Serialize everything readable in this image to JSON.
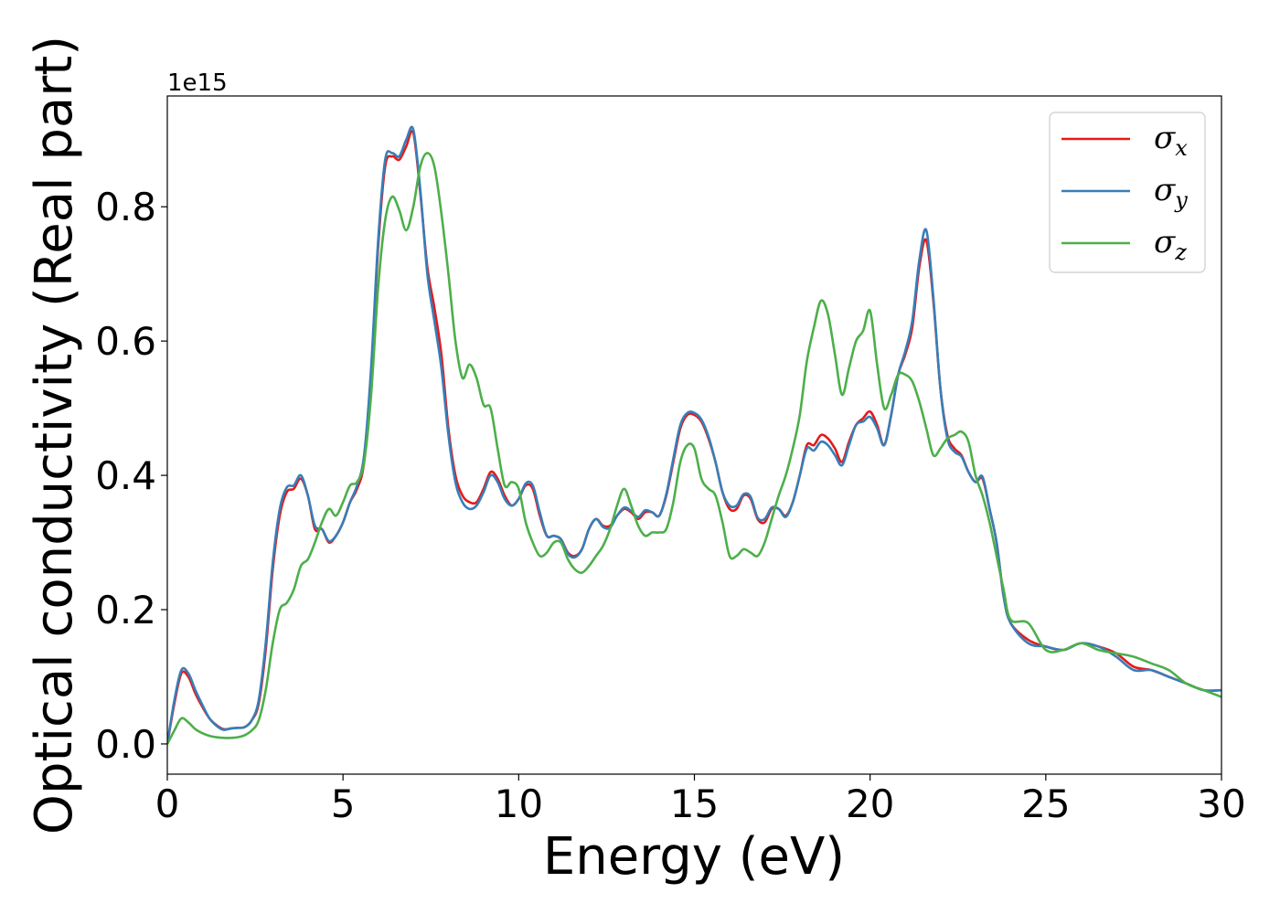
{
  "chart_data": {
    "type": "line",
    "title": "",
    "xlabel": "Energy (eV)",
    "ylabel": "Optical conductivity (Real part)",
    "y_offset_label": "1e15",
    "xlim": [
      0,
      30
    ],
    "ylim": [
      -0.045,
      0.965
    ],
    "xticks": [
      0,
      5,
      10,
      15,
      20,
      25,
      30
    ],
    "xtick_labels": [
      "0",
      "5",
      "10",
      "15",
      "20",
      "25",
      "30"
    ],
    "yticks": [
      0.0,
      0.2,
      0.4,
      0.6,
      0.8
    ],
    "ytick_labels": [
      "0.0",
      "0.2",
      "0.4",
      "0.6",
      "0.8"
    ],
    "grid": false,
    "legend_position": "top-right",
    "series": [
      {
        "name": "σx",
        "legend_symbol": "σ",
        "legend_sub": "x",
        "color": "#e41a1c",
        "x": [
          0,
          0.2,
          0.4,
          0.6,
          0.8,
          1.0,
          1.2,
          1.4,
          1.6,
          1.8,
          2.0,
          2.2,
          2.4,
          2.6,
          2.8,
          3.0,
          3.2,
          3.4,
          3.6,
          3.8,
          4.0,
          4.2,
          4.4,
          4.6,
          4.8,
          5.0,
          5.2,
          5.4,
          5.6,
          5.8,
          6.0,
          6.2,
          6.4,
          6.6,
          6.8,
          7.0,
          7.2,
          7.4,
          7.6,
          7.8,
          8.0,
          8.2,
          8.4,
          8.6,
          8.8,
          9.0,
          9.2,
          9.4,
          9.6,
          9.8,
          10.0,
          10.2,
          10.4,
          10.6,
          10.8,
          11.0,
          11.2,
          11.4,
          11.6,
          11.8,
          12.0,
          12.2,
          12.4,
          12.6,
          12.8,
          13.0,
          13.2,
          13.4,
          13.6,
          13.8,
          14.0,
          14.2,
          14.4,
          14.6,
          14.8,
          15.0,
          15.2,
          15.4,
          15.6,
          15.8,
          16.0,
          16.2,
          16.4,
          16.6,
          16.8,
          17.0,
          17.2,
          17.4,
          17.6,
          17.8,
          18.0,
          18.2,
          18.4,
          18.6,
          18.8,
          19.0,
          19.2,
          19.4,
          19.6,
          19.8,
          20.0,
          20.2,
          20.4,
          20.6,
          20.8,
          21.0,
          21.2,
          21.4,
          21.6,
          21.8,
          22.0,
          22.2,
          22.4,
          22.6,
          22.8,
          23.0,
          23.2,
          23.4,
          23.6,
          23.8,
          24.0,
          24.5,
          25.0,
          25.5,
          26.0,
          26.5,
          27.0,
          27.5,
          28.0,
          28.5,
          29.0,
          29.5,
          30.0
        ],
        "values": [
          0.0,
          0.06,
          0.105,
          0.1,
          0.075,
          0.055,
          0.038,
          0.028,
          0.022,
          0.023,
          0.024,
          0.025,
          0.035,
          0.06,
          0.14,
          0.26,
          0.34,
          0.375,
          0.38,
          0.395,
          0.37,
          0.32,
          0.32,
          0.3,
          0.31,
          0.33,
          0.36,
          0.38,
          0.42,
          0.55,
          0.74,
          0.86,
          0.875,
          0.87,
          0.89,
          0.91,
          0.82,
          0.71,
          0.65,
          0.58,
          0.47,
          0.4,
          0.37,
          0.36,
          0.36,
          0.38,
          0.405,
          0.395,
          0.37,
          0.355,
          0.365,
          0.385,
          0.38,
          0.34,
          0.31,
          0.31,
          0.305,
          0.285,
          0.28,
          0.29,
          0.32,
          0.335,
          0.325,
          0.325,
          0.34,
          0.35,
          0.345,
          0.335,
          0.345,
          0.345,
          0.34,
          0.37,
          0.42,
          0.47,
          0.49,
          0.49,
          0.48,
          0.455,
          0.42,
          0.375,
          0.35,
          0.35,
          0.37,
          0.365,
          0.335,
          0.33,
          0.35,
          0.35,
          0.34,
          0.36,
          0.4,
          0.445,
          0.445,
          0.46,
          0.455,
          0.44,
          0.42,
          0.45,
          0.475,
          0.485,
          0.495,
          0.475,
          0.445,
          0.49,
          0.55,
          0.58,
          0.62,
          0.71,
          0.75,
          0.66,
          0.53,
          0.46,
          0.44,
          0.43,
          0.405,
          0.39,
          0.395,
          0.35,
          0.3,
          0.22,
          0.18,
          0.155,
          0.145,
          0.14,
          0.15,
          0.145,
          0.135,
          0.115,
          0.11,
          0.1,
          0.09,
          0.08,
          0.08
        ]
      },
      {
        "name": "σy",
        "legend_symbol": "σ",
        "legend_sub": "y",
        "color": "#377eb8",
        "x": [
          0,
          0.2,
          0.4,
          0.6,
          0.8,
          1.0,
          1.2,
          1.4,
          1.6,
          1.8,
          2.0,
          2.2,
          2.4,
          2.6,
          2.8,
          3.0,
          3.2,
          3.4,
          3.6,
          3.8,
          4.0,
          4.2,
          4.4,
          4.6,
          4.8,
          5.0,
          5.2,
          5.4,
          5.6,
          5.8,
          6.0,
          6.2,
          6.4,
          6.6,
          6.8,
          7.0,
          7.2,
          7.4,
          7.6,
          7.8,
          8.0,
          8.2,
          8.4,
          8.6,
          8.8,
          9.0,
          9.2,
          9.4,
          9.6,
          9.8,
          10.0,
          10.2,
          10.4,
          10.6,
          10.8,
          11.0,
          11.2,
          11.4,
          11.6,
          11.8,
          12.0,
          12.2,
          12.4,
          12.6,
          12.8,
          13.0,
          13.2,
          13.4,
          13.6,
          13.8,
          14.0,
          14.2,
          14.4,
          14.6,
          14.8,
          15.0,
          15.2,
          15.4,
          15.6,
          15.8,
          16.0,
          16.2,
          16.4,
          16.6,
          16.8,
          17.0,
          17.2,
          17.4,
          17.6,
          17.8,
          18.0,
          18.2,
          18.4,
          18.6,
          18.8,
          19.0,
          19.2,
          19.4,
          19.6,
          19.8,
          20.0,
          20.2,
          20.4,
          20.6,
          20.8,
          21.0,
          21.2,
          21.4,
          21.6,
          21.8,
          22.0,
          22.2,
          22.4,
          22.6,
          22.8,
          23.0,
          23.2,
          23.4,
          23.6,
          23.8,
          24.0,
          24.5,
          25.0,
          25.5,
          26.0,
          26.5,
          27.0,
          27.5,
          28.0,
          28.5,
          29.0,
          29.5,
          30.0
        ],
        "values": [
          0.0,
          0.065,
          0.11,
          0.105,
          0.08,
          0.058,
          0.038,
          0.027,
          0.021,
          0.023,
          0.024,
          0.025,
          0.035,
          0.065,
          0.15,
          0.27,
          0.35,
          0.382,
          0.385,
          0.4,
          0.37,
          0.325,
          0.32,
          0.302,
          0.31,
          0.33,
          0.36,
          0.385,
          0.43,
          0.56,
          0.75,
          0.87,
          0.88,
          0.875,
          0.9,
          0.915,
          0.825,
          0.7,
          0.63,
          0.56,
          0.46,
          0.39,
          0.36,
          0.35,
          0.355,
          0.375,
          0.4,
          0.39,
          0.365,
          0.355,
          0.365,
          0.388,
          0.385,
          0.345,
          0.31,
          0.31,
          0.305,
          0.283,
          0.278,
          0.29,
          0.32,
          0.335,
          0.323,
          0.322,
          0.34,
          0.352,
          0.347,
          0.338,
          0.348,
          0.345,
          0.34,
          0.372,
          0.425,
          0.475,
          0.493,
          0.493,
          0.483,
          0.458,
          0.42,
          0.375,
          0.355,
          0.355,
          0.372,
          0.368,
          0.337,
          0.335,
          0.352,
          0.35,
          0.338,
          0.36,
          0.4,
          0.44,
          0.437,
          0.45,
          0.445,
          0.43,
          0.415,
          0.445,
          0.475,
          0.48,
          0.487,
          0.47,
          0.445,
          0.49,
          0.55,
          0.585,
          0.63,
          0.72,
          0.765,
          0.665,
          0.53,
          0.455,
          0.435,
          0.428,
          0.405,
          0.39,
          0.398,
          0.35,
          0.3,
          0.22,
          0.18,
          0.15,
          0.145,
          0.14,
          0.15,
          0.145,
          0.13,
          0.11,
          0.11,
          0.1,
          0.09,
          0.08,
          0.08
        ]
      },
      {
        "name": "σz",
        "legend_symbol": "σ",
        "legend_sub": "z",
        "color": "#4daf4a",
        "x": [
          0,
          0.2,
          0.4,
          0.6,
          0.8,
          1.0,
          1.2,
          1.4,
          1.6,
          1.8,
          2.0,
          2.2,
          2.4,
          2.6,
          2.8,
          3.0,
          3.2,
          3.4,
          3.6,
          3.8,
          4.0,
          4.2,
          4.4,
          4.6,
          4.8,
          5.0,
          5.2,
          5.4,
          5.6,
          5.8,
          6.0,
          6.2,
          6.4,
          6.6,
          6.8,
          7.0,
          7.2,
          7.4,
          7.6,
          7.8,
          8.0,
          8.2,
          8.4,
          8.6,
          8.8,
          9.0,
          9.2,
          9.4,
          9.6,
          9.8,
          10.0,
          10.2,
          10.4,
          10.6,
          10.8,
          11.0,
          11.2,
          11.4,
          11.6,
          11.8,
          12.0,
          12.2,
          12.4,
          12.6,
          12.8,
          13.0,
          13.2,
          13.4,
          13.6,
          13.8,
          14.0,
          14.2,
          14.4,
          14.6,
          14.8,
          15.0,
          15.2,
          15.4,
          15.6,
          15.8,
          16.0,
          16.2,
          16.4,
          16.6,
          16.8,
          17.0,
          17.2,
          17.4,
          17.6,
          17.8,
          18.0,
          18.2,
          18.4,
          18.6,
          18.8,
          19.0,
          19.2,
          19.4,
          19.6,
          19.8,
          20.0,
          20.2,
          20.4,
          20.6,
          20.8,
          21.0,
          21.2,
          21.4,
          21.6,
          21.8,
          22.0,
          22.2,
          22.4,
          22.6,
          22.8,
          23.0,
          23.2,
          23.4,
          23.6,
          23.8,
          24.0,
          24.5,
          25.0,
          25.5,
          26.0,
          26.5,
          27.0,
          27.5,
          28.0,
          28.5,
          29.0,
          29.5,
          30.0
        ],
        "values": [
          0.0,
          0.02,
          0.038,
          0.032,
          0.022,
          0.016,
          0.012,
          0.01,
          0.009,
          0.009,
          0.01,
          0.013,
          0.02,
          0.035,
          0.08,
          0.15,
          0.2,
          0.21,
          0.23,
          0.265,
          0.275,
          0.3,
          0.33,
          0.35,
          0.34,
          0.36,
          0.385,
          0.39,
          0.42,
          0.52,
          0.68,
          0.78,
          0.815,
          0.795,
          0.765,
          0.8,
          0.86,
          0.88,
          0.86,
          0.79,
          0.7,
          0.6,
          0.545,
          0.565,
          0.545,
          0.505,
          0.5,
          0.44,
          0.385,
          0.39,
          0.38,
          0.33,
          0.3,
          0.28,
          0.285,
          0.3,
          0.3,
          0.275,
          0.26,
          0.255,
          0.265,
          0.28,
          0.295,
          0.32,
          0.355,
          0.38,
          0.355,
          0.325,
          0.31,
          0.315,
          0.315,
          0.32,
          0.36,
          0.42,
          0.445,
          0.44,
          0.395,
          0.38,
          0.37,
          0.33,
          0.28,
          0.28,
          0.29,
          0.285,
          0.28,
          0.3,
          0.335,
          0.37,
          0.4,
          0.44,
          0.49,
          0.57,
          0.62,
          0.66,
          0.64,
          0.58,
          0.52,
          0.56,
          0.6,
          0.615,
          0.645,
          0.565,
          0.5,
          0.52,
          0.55,
          0.55,
          0.54,
          0.51,
          0.47,
          0.43,
          0.44,
          0.455,
          0.46,
          0.465,
          0.45,
          0.4,
          0.37,
          0.33,
          0.28,
          0.23,
          0.185,
          0.18,
          0.14,
          0.14,
          0.15,
          0.14,
          0.135,
          0.13,
          0.12,
          0.11,
          0.09,
          0.08,
          0.07
        ]
      }
    ]
  }
}
